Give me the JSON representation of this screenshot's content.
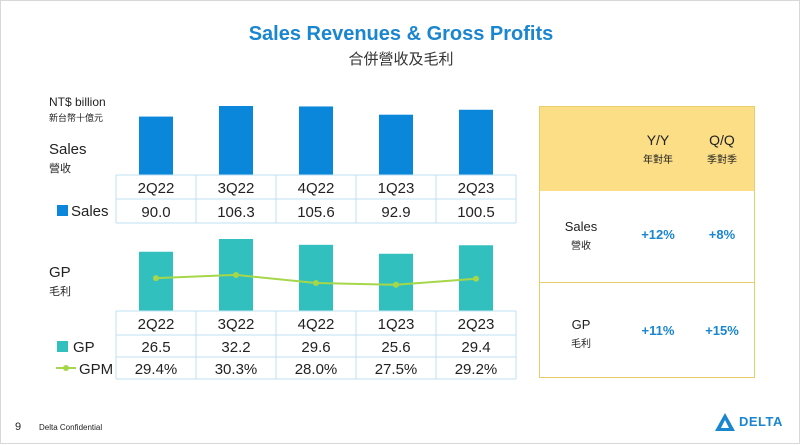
{
  "slide": {
    "title": "Sales Revenues & Gross Profits",
    "subtitle": "合併營收及毛利",
    "page_number": "9",
    "confidential": "Delta Confidential",
    "logo_text": "DELTA"
  },
  "labels": {
    "unit": "NT$ billion",
    "unit_zh": "新台幣十億元",
    "sales": "Sales",
    "sales_zh": "營收",
    "gp": "GP",
    "gp_zh": "毛利"
  },
  "colors": {
    "sales": "#0a86db",
    "gp": "#31c0bd",
    "gpm": "#a6d64a",
    "accent": "#1a86cf",
    "card_header": "#fbde86"
  },
  "chart_data": [
    {
      "type": "bar",
      "title": "Sales",
      "categories": [
        "2Q22",
        "3Q22",
        "4Q22",
        "1Q23",
        "2Q23"
      ],
      "series": [
        {
          "name": "Sales",
          "values": [
            90.0,
            106.3,
            105.6,
            92.9,
            100.5
          ],
          "labels": [
            "90.0",
            "106.3",
            "105.6",
            "92.9",
            "100.5"
          ]
        }
      ],
      "ylabel": "NT$ billion",
      "ylim": [
        0,
        106.3
      ]
    },
    {
      "type": "bar",
      "title": "GP",
      "categories": [
        "2Q22",
        "3Q22",
        "4Q22",
        "1Q23",
        "2Q23"
      ],
      "series": [
        {
          "name": "GP",
          "values": [
            26.5,
            32.2,
            29.6,
            25.6,
            29.4
          ],
          "labels": [
            "26.5",
            "32.2",
            "29.6",
            "25.6",
            "29.4"
          ]
        },
        {
          "name": "GPM",
          "type": "line",
          "values": [
            29.4,
            30.3,
            28.0,
            27.5,
            29.2
          ],
          "labels": [
            "29.4%",
            "30.3%",
            "28.0%",
            "27.5%",
            "29.2%"
          ]
        }
      ],
      "ylim": [
        0,
        32.2
      ],
      "gpm_range": [
        20,
        40
      ]
    }
  ],
  "comparison": {
    "headers": [
      {
        "en": "Y/Y",
        "zh": "年對年"
      },
      {
        "en": "Q/Q",
        "zh": "季對季"
      }
    ],
    "rows": [
      {
        "en": "Sales",
        "zh": "營收",
        "yy": "+12%",
        "qq": "+8%"
      },
      {
        "en": "GP",
        "zh": "毛利",
        "yy": "+11%",
        "qq": "+15%"
      }
    ]
  }
}
